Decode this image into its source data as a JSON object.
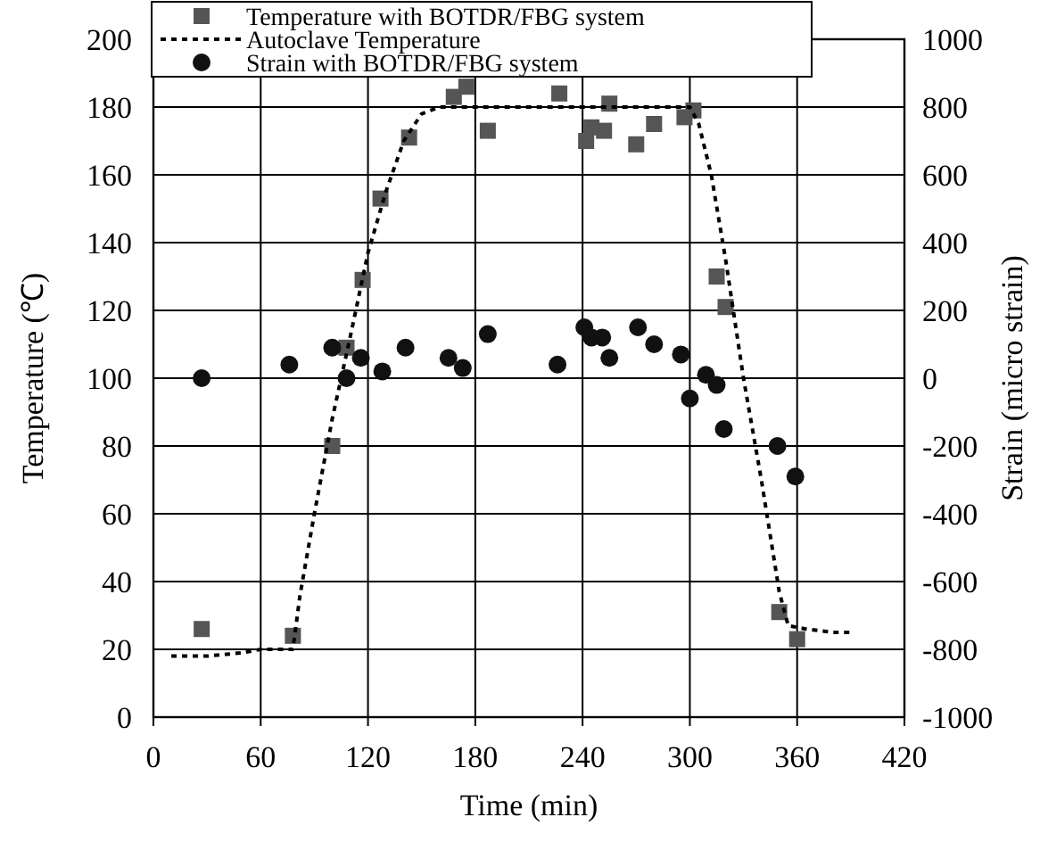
{
  "chart_data": {
    "type": "scatter",
    "xlabel": "Time (min)",
    "ylabel": "Temperature (℃)",
    "y2label": "Strain (micro strain)",
    "xlim": [
      0,
      420
    ],
    "xticks": [
      0,
      60,
      120,
      180,
      240,
      300,
      360,
      420
    ],
    "ylim": [
      0,
      200
    ],
    "yticks": [
      0,
      20,
      40,
      60,
      80,
      100,
      120,
      140,
      160,
      180,
      200
    ],
    "y2lim": [
      -1000,
      1000
    ],
    "y2ticks": [
      -1000,
      -800,
      -600,
      -400,
      -200,
      0,
      200,
      400,
      600,
      800,
      1000
    ],
    "grid": true,
    "legend": "top",
    "series": [
      {
        "name": "Temperature with BOTDR/FBG system",
        "marker": "square",
        "color": "#555555",
        "x": [
          27,
          78,
          100,
          108,
          117,
          127,
          143,
          168,
          175,
          187,
          227,
          242,
          245,
          252,
          255,
          270,
          280,
          297,
          302,
          315,
          320,
          350,
          360
        ],
        "values": [
          26,
          24,
          80,
          109,
          129,
          153,
          171,
          183,
          186,
          173,
          184,
          170,
          174,
          173,
          181,
          169,
          175,
          177,
          179,
          130,
          121,
          31,
          23
        ]
      },
      {
        "name": "Autoclave Temperature",
        "type": "line",
        "marker": "none",
        "line_style": "dotted",
        "color": "#000000",
        "x": [
          10,
          30,
          50,
          60,
          78,
          82,
          90,
          100,
          110,
          120,
          130,
          140,
          150,
          160,
          200,
          250,
          300,
          305,
          312,
          320,
          330,
          340,
          350,
          355,
          365,
          380,
          390
        ],
        "values": [
          18,
          18,
          19,
          20,
          20,
          36,
          60,
          88,
          112,
          137,
          155,
          170,
          178,
          180,
          180,
          180,
          180,
          175,
          160,
          135,
          100,
          70,
          37,
          27,
          26,
          25,
          25
        ]
      },
      {
        "name": "Strain with BOTDR/FBG system",
        "marker": "circle",
        "axis": "y2",
        "color": "#111111",
        "x": [
          27,
          76,
          100,
          108,
          116,
          128,
          141,
          165,
          173,
          187,
          226,
          241,
          245,
          251,
          255,
          271,
          280,
          295,
          300,
          309,
          315,
          319,
          349,
          359
        ],
        "values": [
          0,
          40,
          90,
          0,
          60,
          20,
          90,
          60,
          30,
          130,
          40,
          150,
          120,
          120,
          60,
          150,
          100,
          70,
          -60,
          10,
          -20,
          -150,
          -200,
          -290
        ]
      }
    ]
  }
}
